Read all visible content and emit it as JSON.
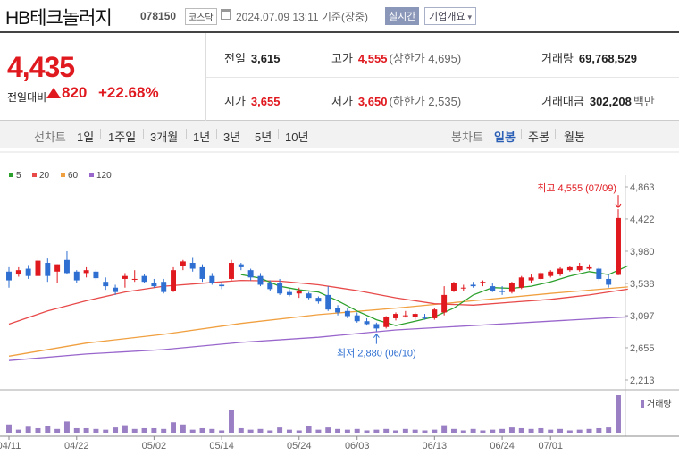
{
  "header": {
    "stock_name": "HB테크놀러지",
    "code": "078150",
    "market_badge": "코스닥",
    "timestamp": "2024.07.09 13:11 기준(장중)",
    "realtime_button": "실시간",
    "overview_button": "기업개요",
    "overview_arrow": "▾"
  },
  "quote": {
    "price": "4,435",
    "change_label": "전일대비",
    "change": "820",
    "change_pct": "+22.68%",
    "prev_close": {
      "label": "전일",
      "value": "3,615"
    },
    "open": {
      "label": "시가",
      "value": "3,655"
    },
    "high": {
      "label": "고가",
      "value": "4,555",
      "sub": "(상한가 4,695)"
    },
    "low": {
      "label": "저가",
      "value": "3,650",
      "sub": "(하한가 2,535)"
    },
    "volume": {
      "label": "거래량",
      "value": "69,768,529"
    },
    "amount": {
      "label": "거래대금",
      "value": "302,208",
      "unit": "백만"
    }
  },
  "tabs": {
    "line_label": "선차트",
    "periods": [
      "1일",
      "1주일",
      "3개월",
      "1년",
      "3년",
      "5년",
      "10년"
    ],
    "candle_label": "봉차트",
    "candle_periods": [
      "일봉",
      "주봉",
      "월봉"
    ],
    "active_candle": "일봉"
  },
  "colors": {
    "up": "#e0191f",
    "down": "#2f6fd1",
    "ma5": "#2ca02c",
    "ma20": "#e84a4a",
    "ma60": "#f0a040",
    "ma120": "#9966cc",
    "volume": "#9a7fc4"
  },
  "chart_data": {
    "type": "candlestick",
    "legend": [
      {
        "name": "5",
        "color": "#2ca02c"
      },
      {
        "name": "20",
        "color": "#e84a4a"
      },
      {
        "name": "60",
        "color": "#f0a040"
      },
      {
        "name": "120",
        "color": "#9966cc"
      }
    ],
    "y_ticks": [
      "4,863",
      "4,422",
      "3,980",
      "3,538",
      "3,097",
      "2,655",
      "2,213"
    ],
    "ylim": [
      2213,
      4863
    ],
    "x_ticks": [
      {
        "label": "04/11",
        "index": 0
      },
      {
        "label": "04/22",
        "index": 7
      },
      {
        "label": "05/02",
        "index": 15
      },
      {
        "label": "05/14",
        "index": 22
      },
      {
        "label": "05/24",
        "index": 30
      },
      {
        "label": "06/03",
        "index": 36
      },
      {
        "label": "06/13",
        "index": 44
      },
      {
        "label": "06/24",
        "index": 51
      },
      {
        "label": "07/01",
        "index": 56
      }
    ],
    "candles": [
      {
        "o": 3700,
        "h": 3760,
        "l": 3480,
        "c": 3580
      },
      {
        "o": 3660,
        "h": 3760,
        "l": 3630,
        "c": 3720
      },
      {
        "o": 3740,
        "h": 3790,
        "l": 3600,
        "c": 3640
      },
      {
        "o": 3640,
        "h": 3900,
        "l": 3620,
        "c": 3850
      },
      {
        "o": 3820,
        "h": 3880,
        "l": 3560,
        "c": 3640
      },
      {
        "o": 3700,
        "h": 3800,
        "l": 3550,
        "c": 3800
      },
      {
        "o": 3860,
        "h": 3980,
        "l": 3660,
        "c": 3680
      },
      {
        "o": 3700,
        "h": 3720,
        "l": 3540,
        "c": 3580
      },
      {
        "o": 3680,
        "h": 3760,
        "l": 3620,
        "c": 3720
      },
      {
        "o": 3700,
        "h": 3730,
        "l": 3580,
        "c": 3610
      },
      {
        "o": 3560,
        "h": 3620,
        "l": 3450,
        "c": 3500
      },
      {
        "o": 3480,
        "h": 3520,
        "l": 3380,
        "c": 3420
      },
      {
        "o": 3600,
        "h": 3680,
        "l": 3480,
        "c": 3640
      },
      {
        "o": 3600,
        "h": 3720,
        "l": 3560,
        "c": 3600
      },
      {
        "o": 3640,
        "h": 3660,
        "l": 3540,
        "c": 3560
      },
      {
        "o": 3540,
        "h": 3600,
        "l": 3480,
        "c": 3500
      },
      {
        "o": 3560,
        "h": 3600,
        "l": 3400,
        "c": 3420
      },
      {
        "o": 3440,
        "h": 3760,
        "l": 3420,
        "c": 3720
      },
      {
        "o": 3780,
        "h": 3860,
        "l": 3720,
        "c": 3840
      },
      {
        "o": 3820,
        "h": 3900,
        "l": 3700,
        "c": 3740
      },
      {
        "o": 3760,
        "h": 3800,
        "l": 3560,
        "c": 3600
      },
      {
        "o": 3640,
        "h": 3680,
        "l": 3520,
        "c": 3540
      },
      {
        "o": 3520,
        "h": 3560,
        "l": 3460,
        "c": 3500
      },
      {
        "o": 3600,
        "h": 3860,
        "l": 3580,
        "c": 3820
      },
      {
        "o": 3800,
        "h": 3820,
        "l": 3720,
        "c": 3760
      },
      {
        "o": 3720,
        "h": 3740,
        "l": 3580,
        "c": 3620
      },
      {
        "o": 3640,
        "h": 3680,
        "l": 3500,
        "c": 3520
      },
      {
        "o": 3540,
        "h": 3580,
        "l": 3440,
        "c": 3460
      },
      {
        "o": 3540,
        "h": 3600,
        "l": 3380,
        "c": 3400
      },
      {
        "o": 3420,
        "h": 3460,
        "l": 3360,
        "c": 3380
      },
      {
        "o": 3400,
        "h": 3480,
        "l": 3340,
        "c": 3440
      },
      {
        "o": 3400,
        "h": 3420,
        "l": 3320,
        "c": 3340
      },
      {
        "o": 3340,
        "h": 3360,
        "l": 3260,
        "c": 3290
      },
      {
        "o": 3380,
        "h": 3500,
        "l": 3160,
        "c": 3180
      },
      {
        "o": 3200,
        "h": 3240,
        "l": 3100,
        "c": 3140
      },
      {
        "o": 3160,
        "h": 3200,
        "l": 3060,
        "c": 3090
      },
      {
        "o": 3100,
        "h": 3140,
        "l": 3000,
        "c": 3020
      },
      {
        "o": 3020,
        "h": 3060,
        "l": 2960,
        "c": 2980
      },
      {
        "o": 2980,
        "h": 3000,
        "l": 2880,
        "c": 2920
      },
      {
        "o": 2940,
        "h": 3090,
        "l": 2920,
        "c": 3080
      },
      {
        "o": 3060,
        "h": 3140,
        "l": 3030,
        "c": 3120
      },
      {
        "o": 3100,
        "h": 3160,
        "l": 3070,
        "c": 3100
      },
      {
        "o": 3080,
        "h": 3140,
        "l": 3040,
        "c": 3120
      },
      {
        "o": 3070,
        "h": 3120,
        "l": 3040,
        "c": 3060
      },
      {
        "o": 3060,
        "h": 3200,
        "l": 3040,
        "c": 3180
      },
      {
        "o": 3140,
        "h": 3500,
        "l": 3100,
        "c": 3380
      },
      {
        "o": 3440,
        "h": 3560,
        "l": 3420,
        "c": 3540
      },
      {
        "o": 3480,
        "h": 3520,
        "l": 3440,
        "c": 3480
      },
      {
        "o": 3520,
        "h": 3560,
        "l": 3480,
        "c": 3500
      },
      {
        "o": 3540,
        "h": 3580,
        "l": 3500,
        "c": 3560
      },
      {
        "o": 3500,
        "h": 3540,
        "l": 3420,
        "c": 3440
      },
      {
        "o": 3440,
        "h": 3500,
        "l": 3380,
        "c": 3420
      },
      {
        "o": 3420,
        "h": 3560,
        "l": 3400,
        "c": 3540
      },
      {
        "o": 3480,
        "h": 3640,
        "l": 3460,
        "c": 3620
      },
      {
        "o": 3580,
        "h": 3660,
        "l": 3550,
        "c": 3620
      },
      {
        "o": 3600,
        "h": 3700,
        "l": 3580,
        "c": 3680
      },
      {
        "o": 3640,
        "h": 3720,
        "l": 3620,
        "c": 3700
      },
      {
        "o": 3660,
        "h": 3760,
        "l": 3640,
        "c": 3740
      },
      {
        "o": 3720,
        "h": 3780,
        "l": 3700,
        "c": 3760
      },
      {
        "o": 3720,
        "h": 3820,
        "l": 3700,
        "c": 3780
      },
      {
        "o": 3740,
        "h": 3800,
        "l": 3720,
        "c": 3760
      },
      {
        "o": 3740,
        "h": 3760,
        "l": 3580,
        "c": 3600
      },
      {
        "o": 3600,
        "h": 3660,
        "l": 3480,
        "c": 3520
      },
      {
        "o": 3655,
        "h": 4555,
        "l": 3650,
        "c": 4435
      }
    ],
    "ma": {
      "5": [
        [
          24,
          3660
        ],
        [
          26,
          3610
        ],
        [
          28,
          3500
        ],
        [
          30,
          3450
        ],
        [
          32,
          3420
        ],
        [
          34,
          3300
        ],
        [
          36,
          3160
        ],
        [
          38,
          3040
        ],
        [
          40,
          2960
        ],
        [
          42,
          3020
        ],
        [
          44,
          3080
        ],
        [
          46,
          3200
        ],
        [
          48,
          3380
        ],
        [
          50,
          3480
        ],
        [
          52,
          3470
        ],
        [
          54,
          3500
        ],
        [
          56,
          3560
        ],
        [
          58,
          3640
        ],
        [
          60,
          3700
        ],
        [
          62,
          3660
        ],
        [
          64,
          3780
        ]
      ],
      "20": [
        [
          0,
          2980
        ],
        [
          4,
          3160
        ],
        [
          8,
          3300
        ],
        [
          12,
          3420
        ],
        [
          16,
          3500
        ],
        [
          20,
          3540
        ],
        [
          24,
          3580
        ],
        [
          28,
          3570
        ],
        [
          32,
          3520
        ],
        [
          36,
          3440
        ],
        [
          40,
          3340
        ],
        [
          44,
          3260
        ],
        [
          48,
          3240
        ],
        [
          52,
          3280
        ],
        [
          56,
          3320
        ],
        [
          60,
          3380
        ],
        [
          64,
          3460
        ]
      ],
      "60": [
        [
          0,
          2540
        ],
        [
          8,
          2720
        ],
        [
          16,
          2840
        ],
        [
          24,
          2990
        ],
        [
          32,
          3110
        ],
        [
          40,
          3200
        ],
        [
          48,
          3300
        ],
        [
          56,
          3400
        ],
        [
          64,
          3490
        ]
      ],
      "120": [
        [
          0,
          2480
        ],
        [
          8,
          2570
        ],
        [
          16,
          2630
        ],
        [
          24,
          2730
        ],
        [
          32,
          2800
        ],
        [
          40,
          2900
        ],
        [
          48,
          2960
        ],
        [
          56,
          3020
        ],
        [
          64,
          3080
        ]
      ]
    },
    "volume": [
      22,
      8,
      16,
      12,
      18,
      10,
      30,
      12,
      12,
      10,
      8,
      14,
      20,
      10,
      12,
      12,
      10,
      28,
      22,
      8,
      12,
      10,
      6,
      60,
      12,
      8,
      10,
      6,
      14,
      8,
      6,
      18,
      8,
      14,
      10,
      8,
      10,
      6,
      8,
      10,
      6,
      10,
      8,
      6,
      8,
      20,
      10,
      6,
      10,
      6,
      8,
      10,
      14,
      12,
      10,
      12,
      8,
      10,
      6,
      8,
      10,
      12,
      14,
      100
    ],
    "volume_label": "거래량",
    "annotations": {
      "high": {
        "text": "최고 4,555 (07/09)",
        "index": 63,
        "value": 4555
      },
      "low": {
        "text": "최저 2,880 (06/10)",
        "index": 38,
        "value": 2880
      }
    }
  }
}
